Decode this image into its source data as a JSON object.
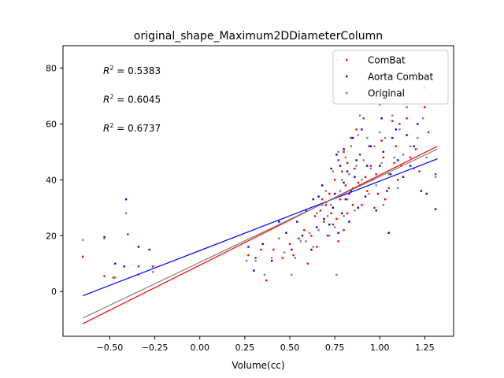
{
  "chart_data": {
    "type": "scatter",
    "title": "original_shape_Maximum2DDiameterColumn",
    "xlabel": "Volume(cc)",
    "ylabel": "",
    "xlim": [
      -0.76,
      1.41
    ],
    "ylim": [
      -16,
      88
    ],
    "xticks": [
      "−0.50",
      "−0.25",
      "0.00",
      "0.25",
      "0.50",
      "0.75",
      "1.00",
      "1.25"
    ],
    "xtick_values": [
      -0.5,
      -0.25,
      0.0,
      0.25,
      0.5,
      0.75,
      1.0,
      1.25
    ],
    "yticks": [
      "0",
      "20",
      "40",
      "60",
      "80"
    ],
    "ytick_values": [
      0,
      20,
      40,
      60,
      80
    ],
    "grid": false,
    "legend_position": "top-right",
    "annotations": [
      {
        "prefix": "R",
        "sup": "2",
        "suffix": " = 0.5383",
        "color": "#ff0000"
      },
      {
        "prefix": "R",
        "sup": "2",
        "suffix": " = 0.6045",
        "color": "#0000ff"
      },
      {
        "prefix": "R",
        "sup": "2",
        "suffix": " = 0.6737",
        "color": "#808080"
      }
    ],
    "series": [
      {
        "name": "ComBat",
        "color": "#ff0000",
        "fit": {
          "x": [
            -0.65,
            1.32
          ],
          "y": [
            -11.5,
            52.0
          ]
        },
        "points": [
          [
            -0.65,
            12.5
          ],
          [
            -0.53,
            5.5
          ],
          [
            -0.48,
            5
          ],
          [
            -0.4,
            20.5
          ],
          [
            -0.34,
            9
          ],
          [
            -0.26,
            9
          ],
          [
            0.27,
            13
          ],
          [
            0.31,
            12
          ],
          [
            0.34,
            15
          ],
          [
            0.37,
            4
          ],
          [
            0.41,
            15
          ],
          [
            0.46,
            12
          ],
          [
            0.5,
            17
          ],
          [
            0.52,
            13
          ],
          [
            0.55,
            19
          ],
          [
            0.58,
            22
          ],
          [
            0.6,
            10
          ],
          [
            0.62,
            20
          ],
          [
            0.64,
            27
          ],
          [
            0.65,
            16
          ],
          [
            0.67,
            29
          ],
          [
            0.68,
            33
          ],
          [
            0.69,
            25
          ],
          [
            0.7,
            31
          ],
          [
            0.71,
            20
          ],
          [
            0.72,
            35
          ],
          [
            0.73,
            28
          ],
          [
            0.74,
            24
          ],
          [
            0.75,
            40
          ],
          [
            0.76,
            26
          ],
          [
            0.77,
            47
          ],
          [
            0.77,
            18
          ],
          [
            0.78,
            33
          ],
          [
            0.79,
            43
          ],
          [
            0.8,
            50
          ],
          [
            0.8,
            22
          ],
          [
            0.81,
            38
          ],
          [
            0.82,
            28
          ],
          [
            0.82,
            46
          ],
          [
            0.83,
            35
          ],
          [
            0.84,
            55
          ],
          [
            0.85,
            31
          ],
          [
            0.86,
            44
          ],
          [
            0.87,
            58
          ],
          [
            0.88,
            39
          ],
          [
            0.89,
            49
          ],
          [
            0.9,
            31
          ],
          [
            0.91,
            62
          ],
          [
            0.92,
            41
          ],
          [
            0.93,
            36
          ],
          [
            0.94,
            52
          ],
          [
            0.95,
            45
          ],
          [
            0.97,
            30
          ],
          [
            0.98,
            42
          ],
          [
            0.99,
            35
          ],
          [
            1.0,
            67
          ],
          [
            1.01,
            54
          ],
          [
            1.02,
            48
          ],
          [
            1.03,
            33
          ],
          [
            1.05,
            37
          ],
          [
            1.07,
            61
          ],
          [
            1.08,
            46
          ],
          [
            1.09,
            52
          ],
          [
            1.1,
            40
          ],
          [
            1.11,
            60
          ],
          [
            1.12,
            45
          ],
          [
            1.15,
            62
          ],
          [
            1.17,
            48
          ],
          [
            1.2,
            51
          ],
          [
            1.22,
            43
          ],
          [
            1.25,
            66
          ],
          [
            1.27,
            57
          ],
          [
            1.31,
            42
          ]
        ]
      },
      {
        "name": "Aorta Combat",
        "color": "#0000ff",
        "fit": {
          "x": [
            -0.65,
            1.32
          ],
          "y": [
            -1.5,
            47.5
          ]
        },
        "points": [
          [
            -0.53,
            19.5
          ],
          [
            -0.47,
            10
          ],
          [
            -0.42,
            9
          ],
          [
            -0.41,
            33
          ],
          [
            -0.34,
            16
          ],
          [
            -0.28,
            15
          ],
          [
            0.27,
            16
          ],
          [
            0.3,
            7.5
          ],
          [
            0.35,
            17
          ],
          [
            0.4,
            11
          ],
          [
            0.44,
            25
          ],
          [
            0.48,
            21
          ],
          [
            0.51,
            15
          ],
          [
            0.54,
            25
          ],
          [
            0.57,
            20
          ],
          [
            0.59,
            29
          ],
          [
            0.62,
            15
          ],
          [
            0.63,
            33
          ],
          [
            0.65,
            23
          ],
          [
            0.66,
            34
          ],
          [
            0.68,
            38
          ],
          [
            0.69,
            26
          ],
          [
            0.7,
            32
          ],
          [
            0.72,
            24
          ],
          [
            0.73,
            44
          ],
          [
            0.74,
            30
          ],
          [
            0.75,
            35
          ],
          [
            0.76,
            49
          ],
          [
            0.77,
            21
          ],
          [
            0.78,
            45
          ],
          [
            0.79,
            28
          ],
          [
            0.8,
            39
          ],
          [
            0.8,
            51
          ],
          [
            0.81,
            33
          ],
          [
            0.82,
            43
          ],
          [
            0.83,
            25
          ],
          [
            0.84,
            36
          ],
          [
            0.85,
            55
          ],
          [
            0.86,
            41
          ],
          [
            0.87,
            47
          ],
          [
            0.88,
            30
          ],
          [
            0.89,
            38
          ],
          [
            0.9,
            58
          ],
          [
            0.92,
            34
          ],
          [
            0.93,
            45
          ],
          [
            0.95,
            52
          ],
          [
            0.96,
            40
          ],
          [
            0.98,
            29
          ],
          [
            1.0,
            45
          ],
          [
            1.01,
            62
          ],
          [
            1.02,
            50
          ],
          [
            1.04,
            36
          ],
          [
            1.05,
            21
          ],
          [
            1.06,
            42
          ],
          [
            1.07,
            55
          ],
          [
            1.09,
            58
          ],
          [
            1.1,
            47
          ],
          [
            1.12,
            71
          ],
          [
            1.13,
            41
          ],
          [
            1.15,
            56
          ],
          [
            1.17,
            45
          ],
          [
            1.19,
            52
          ],
          [
            1.21,
            60
          ],
          [
            1.23,
            36
          ],
          [
            1.25,
            73
          ],
          [
            1.26,
            35
          ],
          [
            1.31,
            29.5
          ]
        ]
      },
      {
        "name": "Original",
        "color": "#808080",
        "fit": {
          "x": [
            -0.65,
            1.32
          ],
          "y": [
            -9.5,
            51.0
          ]
        },
        "points": [
          [
            -0.65,
            18.5
          ],
          [
            -0.53,
            19
          ],
          [
            -0.47,
            5
          ],
          [
            -0.41,
            28
          ],
          [
            -0.34,
            6
          ],
          [
            -0.26,
            7
          ],
          [
            0.26,
            11
          ],
          [
            0.31,
            11
          ],
          [
            0.36,
            6
          ],
          [
            0.4,
            12
          ],
          [
            0.44,
            19
          ],
          [
            0.47,
            14
          ],
          [
            0.51,
            6
          ],
          [
            0.53,
            12
          ],
          [
            0.56,
            18
          ],
          [
            0.59,
            18
          ],
          [
            0.61,
            21
          ],
          [
            0.63,
            16
          ],
          [
            0.65,
            28
          ],
          [
            0.66,
            22
          ],
          [
            0.68,
            31
          ],
          [
            0.7,
            36
          ],
          [
            0.71,
            27
          ],
          [
            0.72,
            20
          ],
          [
            0.73,
            31
          ],
          [
            0.74,
            43
          ],
          [
            0.75,
            23
          ],
          [
            0.76,
            6
          ],
          [
            0.77,
            50
          ],
          [
            0.78,
            36
          ],
          [
            0.79,
            40
          ],
          [
            0.8,
            27
          ],
          [
            0.81,
            48
          ],
          [
            0.82,
            33
          ],
          [
            0.83,
            42
          ],
          [
            0.84,
            52
          ],
          [
            0.85,
            37
          ],
          [
            0.86,
            29
          ],
          [
            0.87,
            45
          ],
          [
            0.88,
            56
          ],
          [
            0.89,
            63
          ],
          [
            0.9,
            40
          ],
          [
            0.91,
            47
          ],
          [
            0.93,
            55
          ],
          [
            0.94,
            35
          ],
          [
            0.95,
            44
          ],
          [
            0.97,
            52
          ],
          [
            0.98,
            38
          ],
          [
            1.0,
            57
          ],
          [
            1.01,
            46
          ],
          [
            1.02,
            31
          ],
          [
            1.03,
            55
          ],
          [
            1.05,
            42
          ],
          [
            1.07,
            63
          ],
          [
            1.08,
            48
          ],
          [
            1.1,
            37
          ],
          [
            1.11,
            58
          ],
          [
            1.13,
            49
          ],
          [
            1.15,
            66
          ],
          [
            1.17,
            52
          ],
          [
            1.19,
            44
          ],
          [
            1.21,
            55
          ],
          [
            1.24,
            62
          ],
          [
            1.26,
            48
          ],
          [
            1.31,
            41
          ]
        ]
      }
    ]
  }
}
